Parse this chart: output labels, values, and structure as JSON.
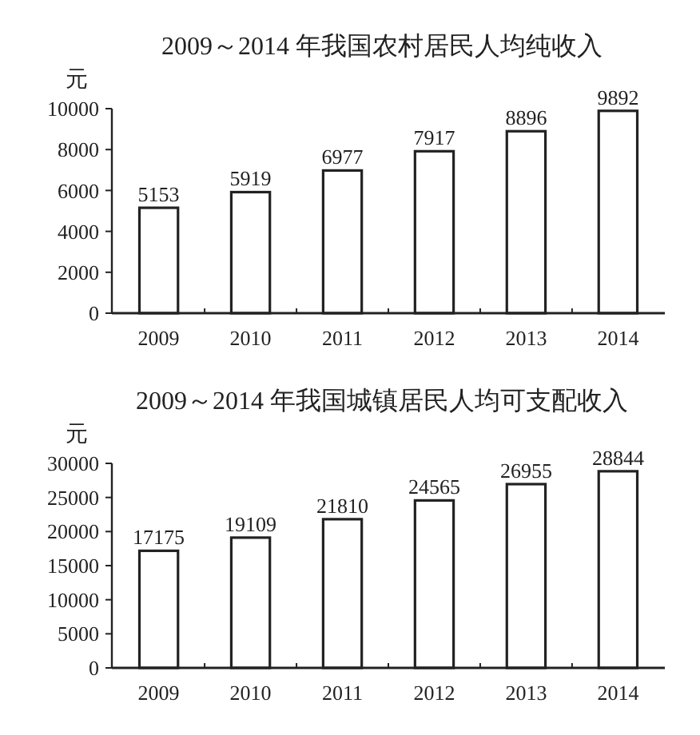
{
  "chart_data": [
    {
      "type": "bar",
      "title": "2009～2014 年我国农村居民人均纯收入",
      "ylabel": "元",
      "categories": [
        "2009",
        "2010",
        "2011",
        "2012",
        "2013",
        "2014"
      ],
      "values": [
        5153,
        5919,
        6977,
        7917,
        8896,
        9892
      ],
      "color": "#ffffff",
      "ylim": [
        0,
        10000
      ],
      "yticks": [
        0,
        2000,
        4000,
        6000,
        8000,
        10000
      ],
      "data_labels": true
    },
    {
      "type": "bar",
      "title": "2009～2014 年我国城镇居民人均可支配收入",
      "ylabel": "元",
      "categories": [
        "2009",
        "2010",
        "2011",
        "2012",
        "2013",
        "2014"
      ],
      "values": [
        17175,
        19109,
        21810,
        24565,
        26955,
        28844
      ],
      "color": "#ffffff",
      "ylim": [
        0,
        30000
      ],
      "yticks": [
        0,
        5000,
        10000,
        15000,
        20000,
        25000,
        30000
      ],
      "data_labels": true
    }
  ]
}
